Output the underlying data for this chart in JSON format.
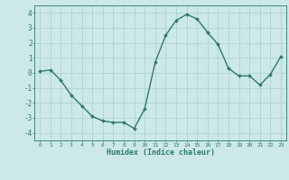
{
  "x": [
    0,
    1,
    2,
    3,
    4,
    5,
    6,
    7,
    8,
    9,
    10,
    11,
    12,
    13,
    14,
    15,
    16,
    17,
    18,
    19,
    20,
    21,
    22,
    23
  ],
  "y": [
    0.1,
    0.2,
    -0.5,
    -1.5,
    -2.2,
    -2.9,
    -3.2,
    -3.3,
    -3.3,
    -3.7,
    -2.4,
    0.7,
    2.5,
    3.5,
    3.9,
    3.6,
    2.7,
    1.9,
    0.3,
    -0.2,
    -0.2,
    -0.8,
    -0.1,
    1.1
  ],
  "line_color": "#2d7a6e",
  "marker": "D",
  "marker_size": 2.0,
  "bg_color": "#cce8e8",
  "grid_color": "#aacfcf",
  "axis_color": "#2d7a6e",
  "tick_color": "#2d7a6e",
  "xlabel": "Humidex (Indice chaleur)",
  "ylim": [
    -4.5,
    4.5
  ],
  "xlim": [
    -0.5,
    23.5
  ],
  "yticks": [
    -4,
    -3,
    -2,
    -1,
    0,
    1,
    2,
    3,
    4
  ],
  "xticks": [
    0,
    1,
    2,
    3,
    4,
    5,
    6,
    7,
    8,
    9,
    10,
    11,
    12,
    13,
    14,
    15,
    16,
    17,
    18,
    19,
    20,
    21,
    22,
    23
  ]
}
